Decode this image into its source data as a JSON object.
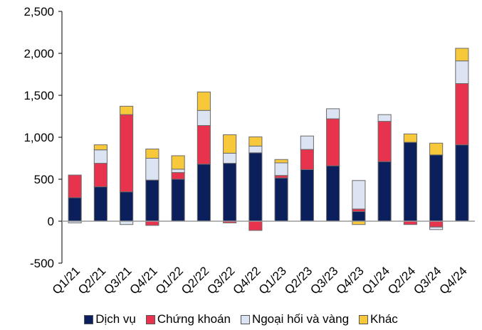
{
  "chart_data": {
    "type": "bar",
    "stacked": true,
    "categories": [
      "Q1/21",
      "Q2/21",
      "Q3/21",
      "Q4/21",
      "Q1/22",
      "Q2/22",
      "Q3/22",
      "Q4/22",
      "Q1/23",
      "Q2/23",
      "Q3/23",
      "Q4/23",
      "Q1/24",
      "Q2/24",
      "Q3/24",
      "Q4/24"
    ],
    "series": [
      {
        "name": "Dịch vụ",
        "color": "#0a1f5c",
        "values": [
          280,
          410,
          350,
          490,
          500,
          680,
          690,
          815,
          515,
          615,
          660,
          115,
          710,
          940,
          790,
          910
        ]
      },
      {
        "name": "Chứng khoán",
        "color": "#e8334f",
        "values": [
          270,
          280,
          920,
          -50,
          80,
          460,
          -20,
          -110,
          30,
          240,
          560,
          30,
          480,
          -40,
          -70,
          730
        ]
      },
      {
        "name": "Ngoại hối và vàng",
        "color": "#dce3f2",
        "values": [
          -20,
          160,
          -40,
          260,
          40,
          180,
          120,
          80,
          150,
          160,
          120,
          340,
          80,
          0,
          -30,
          270
        ]
      },
      {
        "name": "Khác",
        "color": "#f7c93a",
        "values": [
          0,
          60,
          100,
          110,
          160,
          220,
          220,
          110,
          40,
          0,
          0,
          -40,
          0,
          100,
          140,
          150
        ]
      }
    ],
    "ylim": [
      -500,
      2500
    ],
    "yticks": [
      "-500",
      "0",
      "500",
      "1,000",
      "1,500",
      "2,000",
      "2,500"
    ],
    "ytick_values": [
      -500,
      0,
      500,
      1000,
      1500,
      2000,
      2500
    ],
    "legend_position": "bottom",
    "grid": false
  }
}
